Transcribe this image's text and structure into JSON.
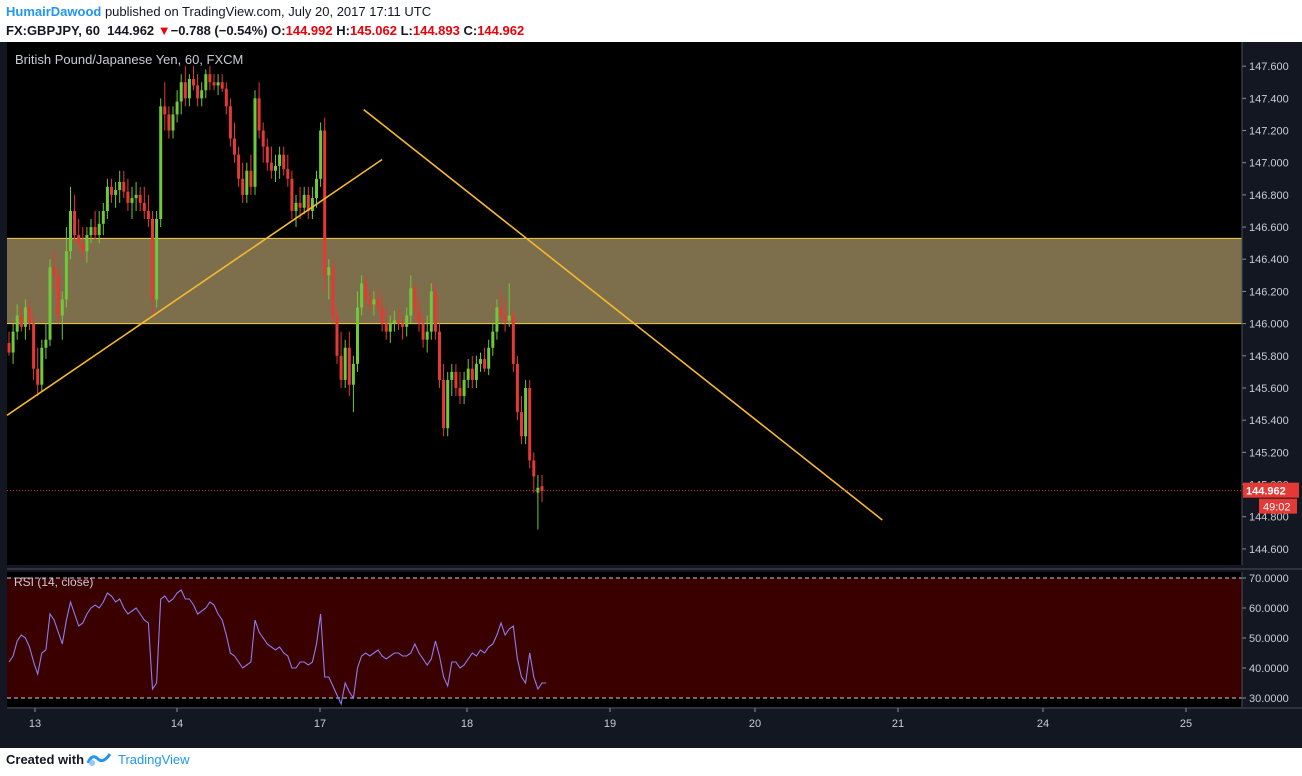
{
  "header": {
    "author": "HumairDawood",
    "published": " published on TradingView.com, July 20, 2017 17:11 UTC",
    "symbol": "FX:GBPJPY, 60",
    "last": "144.962",
    "change": "−0.788 (−0.54%)",
    "o_label": "O:",
    "o_value": "144.992",
    "h_label": "H:",
    "h_value": "145.062",
    "l_label": "L:",
    "l_value": "144.893",
    "c_label": "C:",
    "c_value": "144.962"
  },
  "footer": {
    "created_with": "Created with",
    "brand": "TradingView"
  },
  "chart_data": {
    "type": "candlestick",
    "title": "British Pound/Japanese Yen, 60, FXCM",
    "price_axis": {
      "min": 144.5,
      "max": 147.75,
      "ticks": [
        "147.600",
        "147.400",
        "147.200",
        "147.000",
        "146.800",
        "146.600",
        "146.400",
        "146.200",
        "146.000",
        "145.800",
        "145.600",
        "145.400",
        "145.200",
        "145.000",
        "144.800",
        "144.600"
      ]
    },
    "x_ticks": [
      "13",
      "14",
      "17",
      "18",
      "19",
      "20",
      "21",
      "24",
      "25"
    ],
    "last_price": "144.962",
    "countdown": "49:02",
    "zone": {
      "low": 146.0,
      "high": 146.53
    },
    "trendlines": [
      {
        "x0": 0,
        "y0": 145.43,
        "x1": 91,
        "y1": 147.02
      },
      {
        "x0": 87,
        "y0": 147.33,
        "x1": 213,
        "y1": 144.78
      }
    ],
    "candles_ohlc": [
      [
        145.88,
        145.95,
        145.8,
        145.82
      ],
      [
        145.82,
        146.0,
        145.75,
        145.95
      ],
      [
        145.95,
        146.12,
        145.9,
        146.05
      ],
      [
        146.05,
        146.1,
        145.95,
        145.98
      ],
      [
        145.98,
        146.15,
        145.9,
        146.1
      ],
      [
        146.1,
        146.14,
        145.96,
        146.0
      ],
      [
        146.0,
        146.05,
        145.65,
        145.72
      ],
      [
        145.72,
        145.85,
        145.55,
        145.62
      ],
      [
        145.62,
        145.9,
        145.58,
        145.85
      ],
      [
        145.85,
        146.0,
        145.78,
        145.9
      ],
      [
        145.9,
        146.4,
        145.86,
        146.35
      ],
      [
        146.35,
        146.45,
        146.2,
        146.3
      ],
      [
        146.3,
        146.35,
        146.0,
        146.05
      ],
      [
        146.05,
        146.2,
        145.9,
        146.15
      ],
      [
        146.15,
        146.6,
        146.1,
        146.45
      ],
      [
        146.45,
        146.85,
        146.4,
        146.7
      ],
      [
        146.7,
        146.8,
        146.5,
        146.55
      ],
      [
        146.55,
        146.65,
        146.45,
        146.5
      ],
      [
        146.5,
        146.6,
        146.4,
        146.45
      ],
      [
        146.45,
        146.6,
        146.38,
        146.55
      ],
      [
        146.55,
        146.65,
        146.5,
        146.6
      ],
      [
        146.6,
        146.7,
        146.52,
        146.55
      ],
      [
        146.55,
        146.7,
        146.5,
        146.62
      ],
      [
        146.62,
        146.75,
        146.55,
        146.7
      ],
      [
        146.7,
        146.9,
        146.65,
        146.85
      ],
      [
        146.85,
        146.9,
        146.75,
        146.8
      ],
      [
        146.8,
        146.88,
        146.72,
        146.83
      ],
      [
        146.83,
        146.95,
        146.75,
        146.88
      ],
      [
        146.88,
        146.95,
        146.78,
        146.82
      ],
      [
        146.82,
        146.9,
        146.7,
        146.75
      ],
      [
        146.75,
        146.85,
        146.65,
        146.78
      ],
      [
        146.78,
        146.88,
        146.7,
        146.8
      ],
      [
        146.8,
        146.85,
        146.7,
        146.75
      ],
      [
        146.75,
        146.85,
        146.65,
        146.7
      ],
      [
        146.7,
        146.8,
        146.6,
        146.65
      ],
      [
        146.65,
        146.7,
        146.05,
        146.15
      ],
      [
        146.15,
        146.7,
        146.1,
        146.65
      ],
      [
        146.65,
        147.4,
        146.6,
        147.35
      ],
      [
        147.35,
        147.5,
        147.2,
        147.3
      ],
      [
        147.3,
        147.35,
        147.15,
        147.2
      ],
      [
        147.2,
        147.35,
        147.15,
        147.3
      ],
      [
        147.3,
        147.45,
        147.25,
        147.38
      ],
      [
        147.38,
        147.55,
        147.3,
        147.5
      ],
      [
        147.5,
        147.6,
        147.35,
        147.4
      ],
      [
        147.4,
        147.55,
        147.35,
        147.52
      ],
      [
        147.52,
        147.6,
        147.45,
        147.48
      ],
      [
        147.48,
        147.55,
        147.35,
        147.4
      ],
      [
        147.4,
        147.5,
        147.35,
        147.45
      ],
      [
        147.45,
        147.58,
        147.4,
        147.55
      ],
      [
        147.55,
        147.6,
        147.45,
        147.5
      ],
      [
        147.5,
        147.55,
        147.45,
        147.48
      ],
      [
        147.48,
        147.55,
        147.42,
        147.5
      ],
      [
        147.5,
        147.55,
        147.44,
        147.46
      ],
      [
        147.46,
        147.5,
        147.3,
        147.35
      ],
      [
        147.35,
        147.4,
        147.1,
        147.15
      ],
      [
        147.15,
        147.25,
        147.0,
        147.05
      ],
      [
        147.05,
        147.1,
        146.85,
        146.9
      ],
      [
        146.9,
        147.0,
        146.75,
        146.8
      ],
      [
        146.8,
        147.0,
        146.75,
        146.95
      ],
      [
        146.95,
        147.05,
        146.8,
        146.85
      ],
      [
        146.85,
        147.45,
        146.8,
        147.4
      ],
      [
        147.4,
        147.5,
        147.15,
        147.2
      ],
      [
        147.2,
        147.25,
        147.0,
        147.1
      ],
      [
        147.1,
        147.15,
        146.95,
        147.0
      ],
      [
        147.0,
        147.1,
        146.9,
        146.95
      ],
      [
        146.95,
        147.05,
        146.88,
        146.98
      ],
      [
        146.98,
        147.1,
        146.9,
        147.05
      ],
      [
        147.05,
        147.1,
        146.92,
        146.96
      ],
      [
        146.96,
        147.05,
        146.85,
        146.9
      ],
      [
        146.9,
        146.95,
        146.65,
        146.7
      ],
      [
        146.7,
        146.8,
        146.6,
        146.75
      ],
      [
        146.75,
        146.85,
        146.65,
        146.72
      ],
      [
        146.72,
        146.85,
        146.68,
        146.8
      ],
      [
        146.8,
        146.85,
        146.65,
        146.7
      ],
      [
        146.7,
        146.85,
        146.65,
        146.78
      ],
      [
        146.78,
        146.95,
        146.72,
        146.9
      ],
      [
        146.9,
        147.25,
        146.85,
        147.2
      ],
      [
        147.2,
        147.28,
        146.2,
        146.3
      ],
      [
        146.3,
        146.4,
        146.15,
        146.35
      ],
      [
        146.35,
        146.4,
        146.0,
        146.05
      ],
      [
        146.05,
        146.1,
        145.75,
        145.8
      ],
      [
        145.8,
        145.95,
        145.6,
        145.65
      ],
      [
        145.65,
        145.9,
        145.6,
        145.85
      ],
      [
        145.85,
        145.95,
        145.55,
        145.62
      ],
      [
        145.62,
        145.8,
        145.45,
        145.75
      ],
      [
        145.75,
        146.2,
        145.7,
        146.1
      ],
      [
        146.1,
        146.3,
        146.05,
        146.25
      ],
      [
        146.25,
        146.3,
        146.1,
        146.15
      ],
      [
        146.15,
        146.2,
        146.08,
        146.12
      ],
      [
        146.12,
        146.2,
        146.05,
        146.15
      ],
      [
        146.15,
        146.22,
        146.05,
        146.1
      ],
      [
        146.1,
        146.18,
        145.95,
        146.0
      ],
      [
        146.0,
        146.1,
        145.9,
        145.95
      ],
      [
        145.95,
        146.05,
        145.88,
        146.0
      ],
      [
        146.0,
        146.08,
        145.95,
        146.02
      ],
      [
        146.02,
        146.1,
        145.96,
        146.0
      ],
      [
        146.0,
        146.05,
        145.9,
        145.98
      ],
      [
        145.98,
        146.1,
        145.92,
        146.05
      ],
      [
        146.05,
        146.3,
        146.0,
        146.22
      ],
      [
        146.22,
        146.25,
        146.02,
        146.08
      ],
      [
        146.08,
        146.15,
        145.95,
        146.0
      ],
      [
        146.0,
        146.05,
        145.85,
        145.9
      ],
      [
        145.9,
        146.05,
        145.82,
        145.95
      ],
      [
        145.95,
        146.25,
        145.9,
        146.2
      ],
      [
        146.2,
        146.25,
        145.9,
        145.95
      ],
      [
        145.95,
        146.0,
        145.6,
        145.65
      ],
      [
        145.65,
        145.75,
        145.3,
        145.35
      ],
      [
        145.35,
        145.7,
        145.3,
        145.65
      ],
      [
        145.65,
        145.75,
        145.55,
        145.7
      ],
      [
        145.7,
        145.75,
        145.55,
        145.6
      ],
      [
        145.6,
        145.7,
        145.5,
        145.55
      ],
      [
        145.55,
        145.7,
        145.5,
        145.65
      ],
      [
        145.65,
        145.78,
        145.6,
        145.72
      ],
      [
        145.72,
        145.8,
        145.6,
        145.65
      ],
      [
        145.65,
        145.8,
        145.6,
        145.75
      ],
      [
        145.75,
        145.82,
        145.7,
        145.78
      ],
      [
        145.78,
        145.85,
        145.7,
        145.72
      ],
      [
        145.72,
        145.9,
        145.68,
        145.85
      ],
      [
        145.85,
        146.0,
        145.8,
        145.95
      ],
      [
        145.95,
        146.15,
        145.9,
        146.1
      ],
      [
        146.1,
        146.2,
        146.0,
        146.05
      ],
      [
        146.05,
        146.15,
        145.95,
        146.02
      ],
      [
        146.02,
        146.25,
        145.98,
        146.05
      ],
      [
        146.05,
        146.08,
        145.7,
        145.75
      ],
      [
        145.75,
        145.8,
        145.4,
        145.45
      ],
      [
        145.45,
        145.55,
        145.25,
        145.3
      ],
      [
        145.3,
        145.65,
        145.25,
        145.6
      ],
      [
        145.6,
        145.65,
        145.1,
        145.15
      ],
      [
        145.15,
        145.2,
        144.95,
        145.05
      ],
      [
        144.95,
        145.06,
        144.72,
        144.98
      ],
      [
        144.99,
        145.06,
        144.89,
        144.96
      ]
    ],
    "rsi": {
      "label": "RSI (14, close)",
      "ylim": [
        27,
        72
      ],
      "ticks": [
        "70.0000",
        "60.0000",
        "50.0000",
        "40.0000",
        "30.0000"
      ],
      "levels": [
        70,
        30
      ],
      "values": [
        42,
        44,
        49,
        51,
        50,
        47,
        42,
        38,
        45,
        46,
        58,
        56,
        52,
        48,
        56,
        62,
        58,
        54,
        55,
        58,
        60,
        61,
        60,
        62,
        65,
        64,
        62,
        63,
        60,
        58,
        59,
        60,
        58,
        56,
        55,
        33,
        35,
        63,
        64,
        62,
        63,
        65,
        66,
        63,
        63,
        61,
        58,
        59,
        60,
        62,
        61,
        58,
        56,
        51,
        45,
        44,
        42,
        40,
        41,
        42,
        56,
        52,
        50,
        48,
        47,
        46,
        47,
        45,
        44,
        40,
        40,
        42,
        42,
        41,
        42,
        48,
        58,
        37,
        37,
        34,
        31,
        28,
        35,
        32,
        30,
        40,
        44,
        45,
        44,
        45,
        46,
        44,
        43,
        44,
        45,
        45,
        44,
        44,
        45,
        48,
        45,
        43,
        41,
        43,
        49,
        44,
        37,
        34,
        42,
        42,
        40,
        41,
        43,
        45,
        44,
        46,
        45,
        47,
        48,
        51,
        55,
        51,
        53,
        54,
        43,
        37,
        35,
        45,
        37,
        33,
        35,
        35
      ]
    }
  }
}
